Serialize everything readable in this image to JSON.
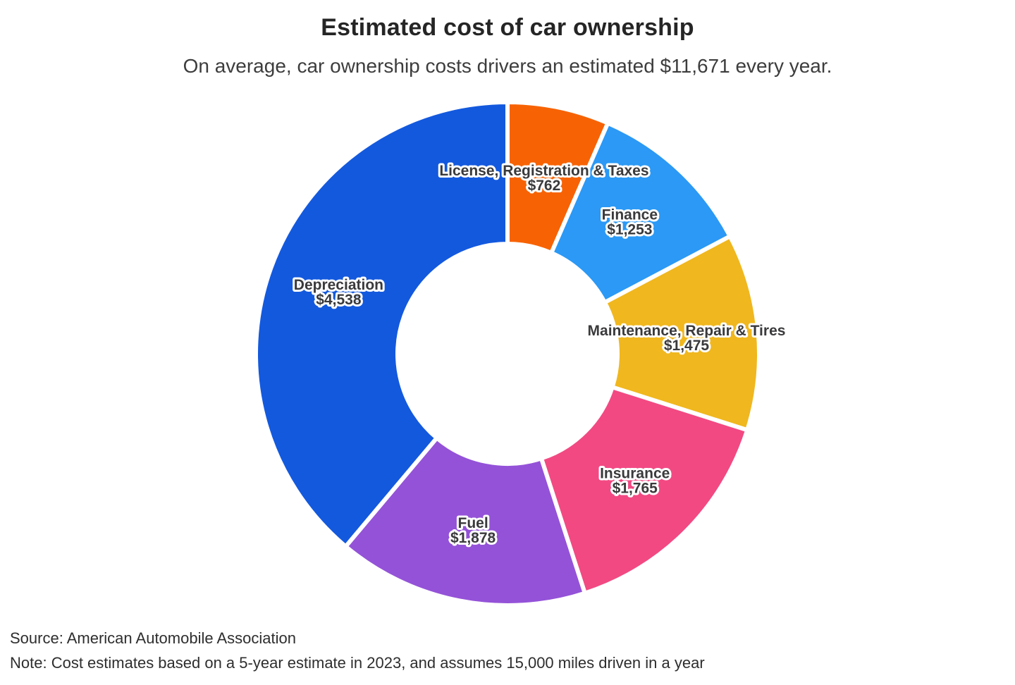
{
  "header": {
    "title": "Estimated cost of car ownership",
    "subtitle": "On average, car ownership costs drivers an estimated $11,671 every year."
  },
  "chart_data": {
    "type": "pie",
    "variant": "donut",
    "title": "Estimated cost of car ownership",
    "subtitle": "On average, car ownership costs drivers an estimated $11,671 every year.",
    "total_value": 11671,
    "total_label": "$11,671",
    "categories": [
      "License, Registration & Taxes",
      "Finance",
      "Maintenance, Repair & Tires",
      "Insurance",
      "Fuel",
      "Depreciation"
    ],
    "values": [
      762,
      1253,
      1475,
      1765,
      1878,
      4538
    ],
    "value_labels": [
      "$762",
      "$1,253",
      "$1,475",
      "$1,765",
      "$1,878",
      "$4,538"
    ],
    "colors": [
      "#F76304",
      "#2B99F5",
      "#F0B71E",
      "#F24983",
      "#9452D8",
      "#1359DE"
    ],
    "start_angle_deg": 0,
    "direction": "clockwise",
    "inner_radius_ratio": 0.437,
    "label_position": "inside",
    "legend": "none",
    "gap_color": "#FFFFFF"
  },
  "footer": {
    "source": "Source: American Automobile Association",
    "note": "Note: Cost estimates based on a 5-year estimate in 2023, and assumes 15,000 miles driven in a year"
  }
}
